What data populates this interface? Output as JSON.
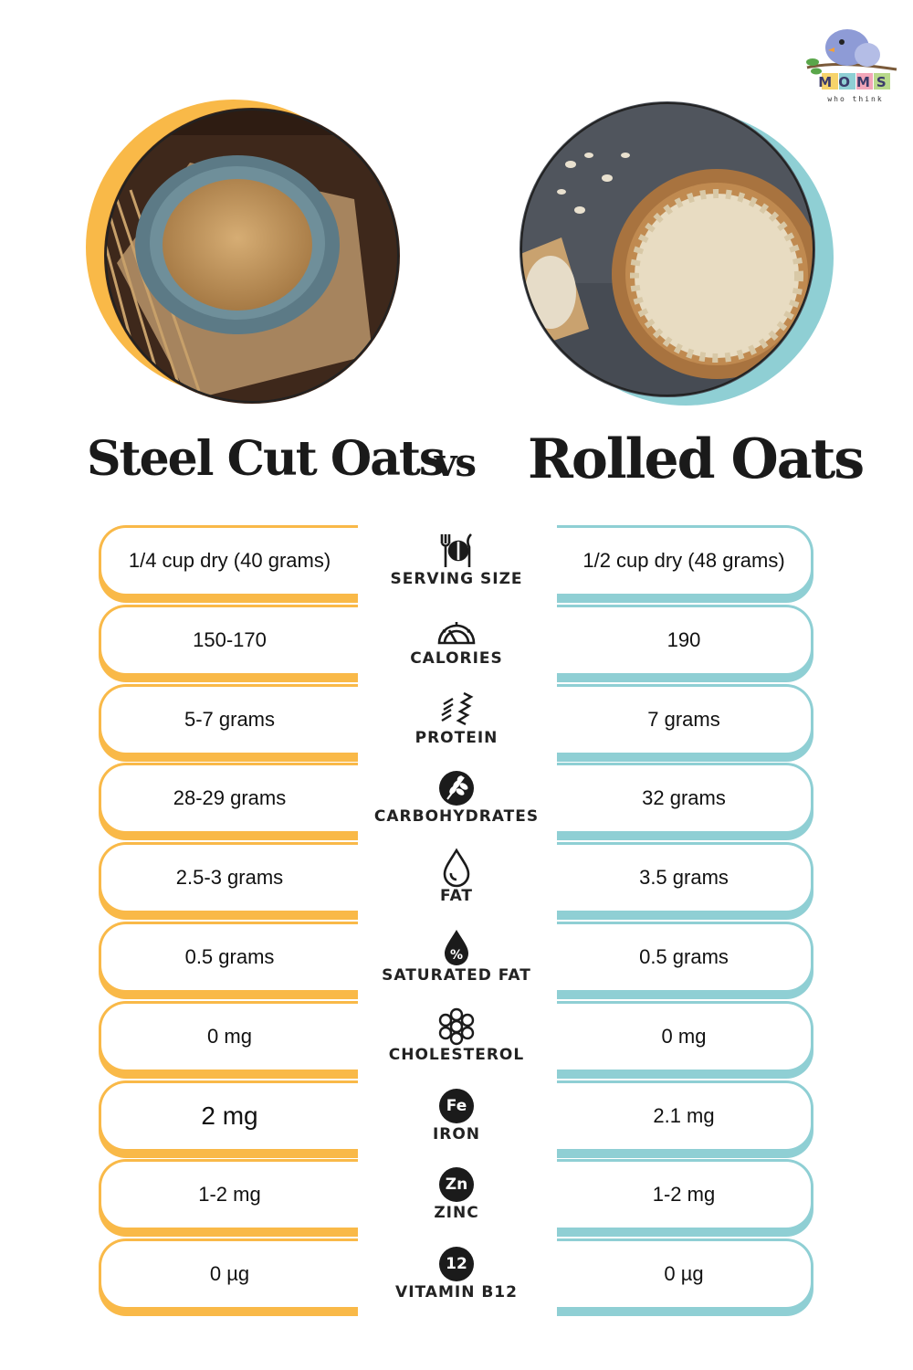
{
  "logo": {
    "text": "MOMS",
    "tagline": "who think"
  },
  "header": {
    "left_title": "Steel Cut Oats",
    "vs": "vs",
    "right_title": "Rolled Oats"
  },
  "colors": {
    "left_accent": "#f9b948",
    "right_accent": "#8fcfd4"
  },
  "rows": [
    {
      "label": "SERVING SIZE",
      "icon": "utensils-plate-icon",
      "left": "1/4 cup dry (40 grams)",
      "right": "1/2 cup dry (48 grams)"
    },
    {
      "label": "CALORIES",
      "icon": "gauge-icon",
      "left": "150-170",
      "right": "190"
    },
    {
      "label": "PROTEIN",
      "icon": "protein-chain-icon",
      "left": "5-7 grams",
      "right": "7 grams"
    },
    {
      "label": "CARBOHYDRATES",
      "icon": "wheat-icon",
      "left": "28-29 grams",
      "right": "32 grams"
    },
    {
      "label": "FAT",
      "icon": "drop-icon",
      "left": "2.5-3 grams",
      "right": "3.5 grams"
    },
    {
      "label": "SATURATED FAT",
      "icon": "percent-drop-icon",
      "left": "0.5 grams",
      "right": "0.5 grams"
    },
    {
      "label": "CHOLESTEROL",
      "icon": "molecule-icon",
      "left": "0 mg",
      "right": "0 mg"
    },
    {
      "label": "IRON",
      "icon": "fe-badge-icon",
      "badge": "Fe",
      "left": "2 mg",
      "right": "2.1 mg"
    },
    {
      "label": "ZINC",
      "icon": "zn-badge-icon",
      "badge": "Zn",
      "left": "1-2 mg",
      "right": "1-2 mg"
    },
    {
      "label": "VITAMIN B12",
      "icon": "b12-badge-icon",
      "badge": "12",
      "left": "0 µg",
      "right": "0 µg"
    }
  ]
}
